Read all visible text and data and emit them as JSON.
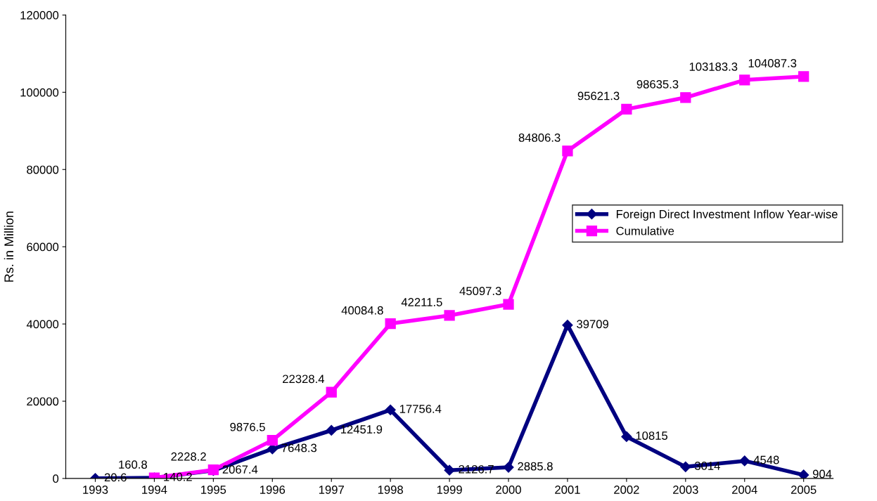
{
  "chart_data": {
    "type": "line",
    "ylabel": "Rs. in Million",
    "categories": [
      "1993",
      "1994",
      "1995",
      "1996",
      "1997",
      "1998",
      "1999",
      "2000",
      "2001",
      "2002",
      "2003",
      "2004",
      "2005"
    ],
    "series": [
      {
        "name": "Foreign Direct Investment Inflow Year-wise",
        "color": "#000080",
        "marker": "diamond",
        "values": [
          20.6,
          140.2,
          2067.4,
          7648.3,
          12451.9,
          17756.4,
          2126.7,
          2885.8,
          39709,
          10815,
          3014,
          4548,
          904
        ],
        "value_labels": [
          "20.6",
          "140.2",
          "2067.4",
          "7648.3",
          "12451.9",
          "17756.4",
          "2126.7",
          "2885.8",
          "39709",
          "10815",
          "3014",
          "4548",
          "904"
        ]
      },
      {
        "name": "Cumulative",
        "color": "#ff00ff",
        "marker": "square",
        "values": [
          null,
          160.8,
          2228.2,
          9876.5,
          22328.4,
          40084.8,
          42211.5,
          45097.3,
          84806.3,
          95621.3,
          98635.3,
          103183.3,
          104087.3
        ],
        "value_labels": [
          null,
          "160.8",
          "2228.2",
          "9876.5",
          "22328.4",
          "40084.8",
          "42211.5",
          "45097.3",
          "84806.3",
          "95621.3",
          "98635.3",
          "103183.3",
          "104087.3"
        ]
      }
    ],
    "ylim": [
      0,
      120000
    ],
    "yticks": [
      0,
      20000,
      40000,
      60000,
      80000,
      100000,
      120000
    ],
    "legend": "right",
    "grid": false,
    "line_style": "solid"
  }
}
